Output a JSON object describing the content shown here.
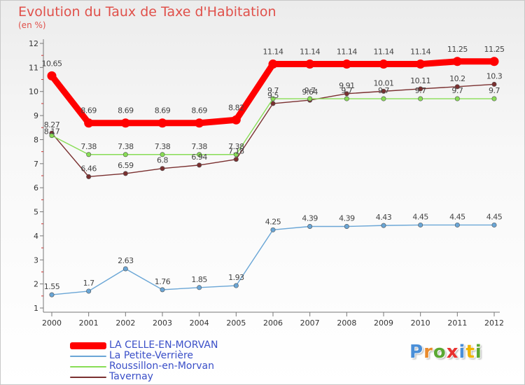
{
  "header": {
    "title": "Evolution du Taux de Taxe d'Habitation",
    "subtitle": "(en %)"
  },
  "chart_data": {
    "type": "line",
    "title": "Evolution du Taux de Taxe d'Habitation",
    "ylabel": "(en %)",
    "xlabel": "",
    "x": [
      "2000",
      "2001",
      "2002",
      "2003",
      "2004",
      "2005",
      "2006",
      "2007",
      "2008",
      "2009",
      "2010",
      "2011",
      "2012"
    ],
    "ylim": [
      1,
      12
    ],
    "yticks": [
      "1",
      "2",
      "3",
      "4",
      "5",
      "6",
      "7",
      "8",
      "9",
      "10",
      "11",
      "12"
    ],
    "grid": false,
    "legend_position": "bottom-left",
    "series": [
      {
        "name": "LA CELLE-EN-MORVAN",
        "color": "#ff0000",
        "values": [
          10.65,
          8.69,
          8.69,
          8.69,
          8.69,
          8.82,
          11.14,
          11.14,
          11.14,
          11.14,
          11.14,
          11.25,
          11.25
        ],
        "labels": [
          "10.65",
          "8.69",
          "8.69",
          "8.69",
          "8.69",
          "8.82",
          "11.14",
          "11.14",
          "11.14",
          "11.14",
          "11.14",
          "11.25",
          "11.25"
        ]
      },
      {
        "name": "La Petite-Verrière",
        "color": "#6aa6d6",
        "values": [
          1.55,
          1.7,
          2.63,
          1.76,
          1.85,
          1.93,
          4.25,
          4.39,
          4.39,
          4.43,
          4.45,
          4.45,
          4.45
        ],
        "labels": [
          "1.55",
          "1.7",
          "2.63",
          "1.76",
          "1.85",
          "1.93",
          "4.25",
          "4.39",
          "4.39",
          "4.43",
          "4.45",
          "4.45",
          "4.45"
        ]
      },
      {
        "name": "Roussillon-en-Morvan",
        "color": "#88dd55",
        "values": [
          8.17,
          7.38,
          7.38,
          7.38,
          7.38,
          7.38,
          9.7,
          9.7,
          9.7,
          9.7,
          9.7,
          9.7,
          9.7
        ],
        "labels": [
          "8.17",
          "7.38",
          "7.38",
          "7.38",
          "7.38",
          "7.38",
          "9.7",
          "9.7",
          "9.7",
          "9.7",
          "9.7",
          "9.7",
          "9.7"
        ]
      },
      {
        "name": "Tavernay",
        "color": "#7a3030",
        "values": [
          8.27,
          6.46,
          6.59,
          6.8,
          6.94,
          7.18,
          9.5,
          9.64,
          9.91,
          10.01,
          10.11,
          10.2,
          10.3
        ],
        "labels": [
          "8.27",
          "6.46",
          "6.59",
          "6.8",
          "6.94",
          "7.18",
          "9.5",
          "9.64",
          "9.91",
          "10.01",
          "10.11",
          "10.2",
          "10.3"
        ]
      }
    ]
  },
  "legend": {
    "items": [
      {
        "label": "LA CELLE-EN-MORVAN",
        "color": "#ff0000"
      },
      {
        "label": "La Petite-Verrière",
        "color": "#6aa6d6"
      },
      {
        "label": "Roussillon-en-Morvan",
        "color": "#88dd55"
      },
      {
        "label": "Tavernay",
        "color": "#7a3030"
      }
    ]
  },
  "logo": {
    "text": "Proxiti",
    "letter_colors": [
      "#4a8fd8",
      "#e98a2c",
      "#5aa832",
      "#e8312f",
      "#4a8fd8",
      "#f0b400",
      "#5aa832"
    ]
  }
}
